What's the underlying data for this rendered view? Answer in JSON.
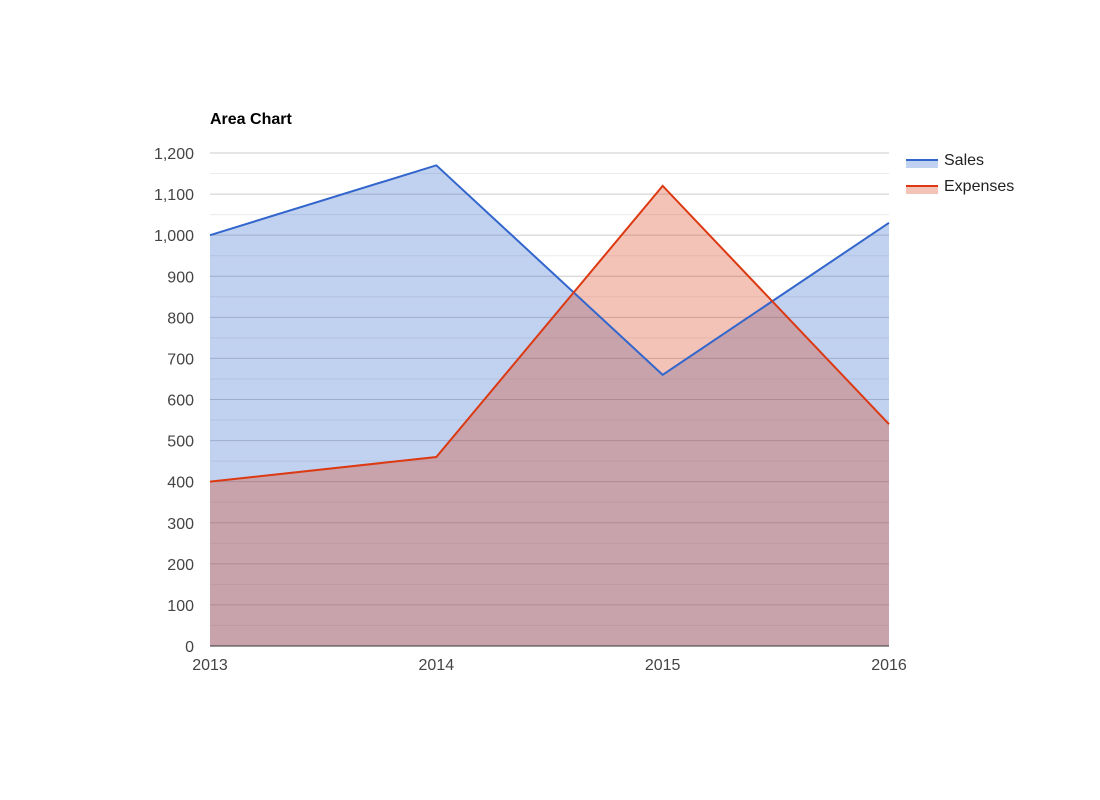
{
  "colors": {
    "sales": "#3366cc",
    "expenses": "#dc3912",
    "gridline": "#cccccc",
    "minor_gridline": "#ebebeb",
    "baseline": "#333333"
  },
  "chart_data": {
    "type": "area",
    "title": "Area Chart",
    "categories": [
      "2013",
      "2014",
      "2015",
      "2016"
    ],
    "series": [
      {
        "name": "Sales",
        "values": [
          1000,
          1170,
          660,
          1030
        ],
        "color": "#3366cc"
      },
      {
        "name": "Expenses",
        "values": [
          400,
          460,
          1120,
          540
        ],
        "color": "#dc3912"
      }
    ],
    "xlabel": "",
    "ylabel": "",
    "ylim": [
      0,
      1200
    ],
    "yticks": [
      0,
      100,
      200,
      300,
      400,
      500,
      600,
      700,
      800,
      900,
      1000,
      1100,
      1200
    ],
    "ytick_labels": [
      "0",
      "100",
      "200",
      "300",
      "400",
      "500",
      "600",
      "700",
      "800",
      "900",
      "1,000",
      "1,100",
      "1,200"
    ],
    "grid": true,
    "legend_position": "right",
    "fill_opacity": 0.3
  }
}
